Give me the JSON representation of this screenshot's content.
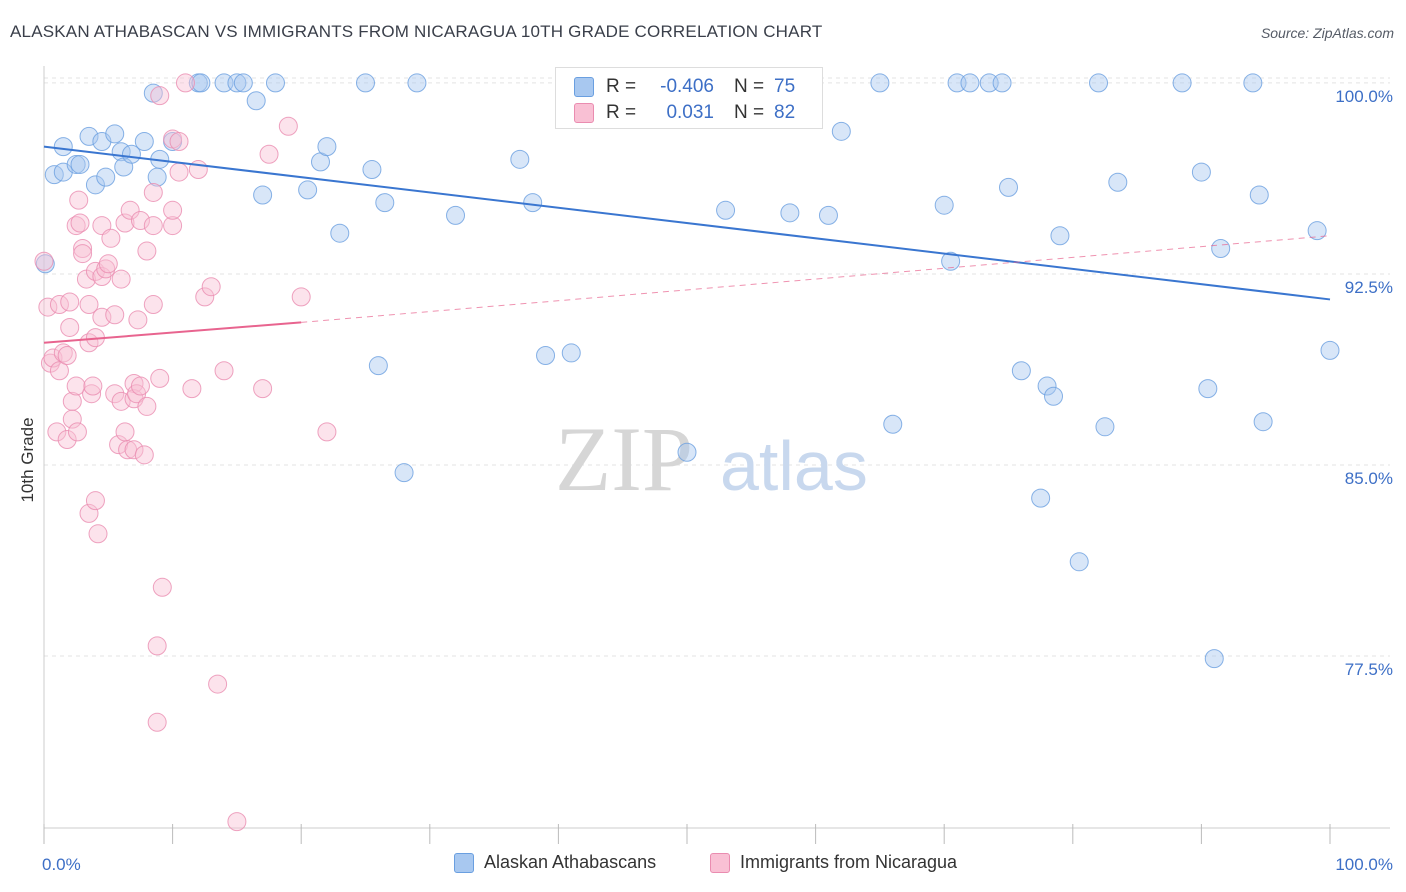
{
  "title": "ALASKAN ATHABASCAN VS IMMIGRANTS FROM NICARAGUA 10TH GRADE CORRELATION CHART",
  "source": "Source: ZipAtlas.com",
  "watermark": {
    "zip": "ZIP",
    "atlas": "atlas"
  },
  "legend_stats": [
    {
      "r_label": "R =",
      "r_value": "-0.406",
      "n_label": "N =",
      "n_value": "75",
      "color": "#a8c8f0",
      "border": "#6a9fe0"
    },
    {
      "r_label": "R =",
      "r_value": "0.031",
      "n_label": "N =",
      "n_value": "82",
      "color": "#f9c0d4",
      "border": "#ea8cb0"
    }
  ],
  "legend_bottom": [
    {
      "label": "Alaskan Athabascans",
      "color": "#a8c8f0",
      "border": "#6a9fe0"
    },
    {
      "label": "Immigrants from Nicaragua",
      "color": "#f9c0d4",
      "border": "#ea8cb0"
    }
  ],
  "colors": {
    "blue_line": "#3a76d0",
    "pink_line": "#e8648f",
    "tick_label": "#3d6fc6",
    "grid": "#e3e3e3"
  },
  "chart_data": {
    "type": "scatter",
    "title": "ALASKAN ATHABASCAN VS IMMIGRANTS FROM NICARAGUA 10TH GRADE CORRELATION CHART",
    "xlabel": "",
    "ylabel": "10th Grade",
    "xlim": [
      0,
      100
    ],
    "ylim": [
      70.75,
      100.9
    ],
    "x_tick_labels": [
      "0.0%",
      "100.0%"
    ],
    "y_ticks": [
      77.5,
      85.0,
      92.5,
      100.0
    ],
    "y_tick_labels": [
      "77.5%",
      "85.0%",
      "92.5%",
      "100.0%"
    ],
    "grid": true,
    "legend_position": "top-center",
    "series": [
      {
        "name": "Alaskan Athabascans",
        "color": "#a8c8f0",
        "trend": {
          "x": [
            0,
            100
          ],
          "y": [
            97.5,
            91.5
          ],
          "style": "solid"
        },
        "points": [
          [
            0.1,
            92.9
          ],
          [
            0.8,
            96.4
          ],
          [
            1.5,
            97.5
          ],
          [
            1.5,
            96.5
          ],
          [
            2.5,
            96.8
          ],
          [
            2.8,
            96.8
          ],
          [
            3.5,
            97.9
          ],
          [
            4,
            96
          ],
          [
            4.5,
            97.7
          ],
          [
            4.8,
            96.3
          ],
          [
            5.5,
            98
          ],
          [
            6,
            97.3
          ],
          [
            6.2,
            96.7
          ],
          [
            6.8,
            97.2
          ],
          [
            7.8,
            97.7
          ],
          [
            8.5,
            99.6
          ],
          [
            8.8,
            96.3
          ],
          [
            9,
            97
          ],
          [
            10,
            97.7
          ],
          [
            12,
            100
          ],
          [
            12.2,
            100
          ],
          [
            14,
            100
          ],
          [
            15,
            100
          ],
          [
            15.5,
            100
          ],
          [
            16.5,
            99.3
          ],
          [
            17,
            95.6
          ],
          [
            18,
            100
          ],
          [
            20.5,
            95.8
          ],
          [
            21.5,
            96.9
          ],
          [
            22,
            97.5
          ],
          [
            23,
            94.1
          ],
          [
            25,
            100
          ],
          [
            25.5,
            96.6
          ],
          [
            26.5,
            95.3
          ],
          [
            26,
            88.9
          ],
          [
            28,
            84.7
          ],
          [
            29,
            100
          ],
          [
            32,
            94.8
          ],
          [
            37,
            97
          ],
          [
            38,
            95.3
          ],
          [
            39,
            89.3
          ],
          [
            41,
            89.4
          ],
          [
            50,
            85.5
          ],
          [
            53,
            95
          ],
          [
            58,
            94.9
          ],
          [
            61,
            94.8
          ],
          [
            62,
            98.1
          ],
          [
            65,
            100
          ],
          [
            66,
            86.6
          ],
          [
            70,
            95.2
          ],
          [
            70.5,
            93
          ],
          [
            71,
            100
          ],
          [
            72,
            100
          ],
          [
            73.5,
            100
          ],
          [
            74.5,
            100
          ],
          [
            75,
            95.9
          ],
          [
            76,
            88.7
          ],
          [
            77.5,
            83.7
          ],
          [
            78,
            88.1
          ],
          [
            78.5,
            87.7
          ],
          [
            79,
            94
          ],
          [
            80.5,
            81.2
          ],
          [
            82,
            100
          ],
          [
            82.5,
            86.5
          ],
          [
            83.5,
            96.1
          ],
          [
            88.5,
            100
          ],
          [
            90,
            96.5
          ],
          [
            90.5,
            88
          ],
          [
            91,
            77.4
          ],
          [
            91.5,
            93.5
          ],
          [
            94,
            100
          ],
          [
            94.5,
            95.6
          ],
          [
            94.8,
            86.7
          ],
          [
            99,
            94.2
          ],
          [
            100,
            89.5
          ]
        ]
      },
      {
        "name": "Immigrants from Nicaragua",
        "color": "#f9c0d4",
        "trend": {
          "x": [
            0,
            20
          ],
          "y": [
            89.8,
            90.6
          ],
          "style": "solid",
          "extended": {
            "x": [
              20,
              100
            ],
            "y": [
              90.6,
              94.0
            ],
            "style": "dashed"
          }
        },
        "points": [
          [
            0,
            93
          ],
          [
            0.3,
            91.2
          ],
          [
            0.5,
            89
          ],
          [
            0.7,
            89.2
          ],
          [
            1,
            86.3
          ],
          [
            1.2,
            88.7
          ],
          [
            1.2,
            91.3
          ],
          [
            1.5,
            89.4
          ],
          [
            1.8,
            89.3
          ],
          [
            1.8,
            86
          ],
          [
            2,
            91.4
          ],
          [
            2,
            90.4
          ],
          [
            2.2,
            87.5
          ],
          [
            2.2,
            86.8
          ],
          [
            2.5,
            88.1
          ],
          [
            2.5,
            94.4
          ],
          [
            2.6,
            86.3
          ],
          [
            2.7,
            95.4
          ],
          [
            2.8,
            94.5
          ],
          [
            3,
            93.5
          ],
          [
            3,
            93.3
          ],
          [
            3.3,
            92.3
          ],
          [
            3.5,
            91.3
          ],
          [
            3.5,
            83.1
          ],
          [
            3.5,
            89.8
          ],
          [
            3.7,
            87.8
          ],
          [
            3.8,
            88.1
          ],
          [
            4,
            92.6
          ],
          [
            4,
            90
          ],
          [
            4,
            83.6
          ],
          [
            4.2,
            82.3
          ],
          [
            4.5,
            94.4
          ],
          [
            4.5,
            90.8
          ],
          [
            4.5,
            92.4
          ],
          [
            4.8,
            92.7
          ],
          [
            5,
            92.9
          ],
          [
            5.2,
            93.9
          ],
          [
            5.5,
            90.9
          ],
          [
            5.5,
            87.8
          ],
          [
            5.8,
            85.8
          ],
          [
            6,
            92.3
          ],
          [
            6,
            87.5
          ],
          [
            6.3,
            94.5
          ],
          [
            6.3,
            86.3
          ],
          [
            6.5,
            85.6
          ],
          [
            6.7,
            95
          ],
          [
            7,
            88.2
          ],
          [
            7,
            87.6
          ],
          [
            7,
            85.6
          ],
          [
            7.2,
            87.8
          ],
          [
            7.3,
            90.7
          ],
          [
            7.5,
            94.6
          ],
          [
            7.5,
            88.1
          ],
          [
            7.8,
            85.4
          ],
          [
            8,
            93.4
          ],
          [
            8,
            87.3
          ],
          [
            8.5,
            94.4
          ],
          [
            8.5,
            91.3
          ],
          [
            8.5,
            95.7
          ],
          [
            8.8,
            74.9
          ],
          [
            8.8,
            77.9
          ],
          [
            9,
            88.4
          ],
          [
            9,
            99.5
          ],
          [
            9.2,
            80.2
          ],
          [
            10,
            94.4
          ],
          [
            10,
            95
          ],
          [
            10,
            97.8
          ],
          [
            10.5,
            97.7
          ],
          [
            10.5,
            96.5
          ],
          [
            11,
            100
          ],
          [
            11.5,
            88
          ],
          [
            12,
            96.6
          ],
          [
            12.5,
            91.6
          ],
          [
            13,
            92
          ],
          [
            13.5,
            76.4
          ],
          [
            14,
            88.7
          ],
          [
            15,
            71
          ],
          [
            17,
            88
          ],
          [
            17.5,
            97.2
          ],
          [
            19,
            98.3
          ],
          [
            20,
            91.6
          ],
          [
            22,
            86.3
          ]
        ]
      }
    ]
  }
}
